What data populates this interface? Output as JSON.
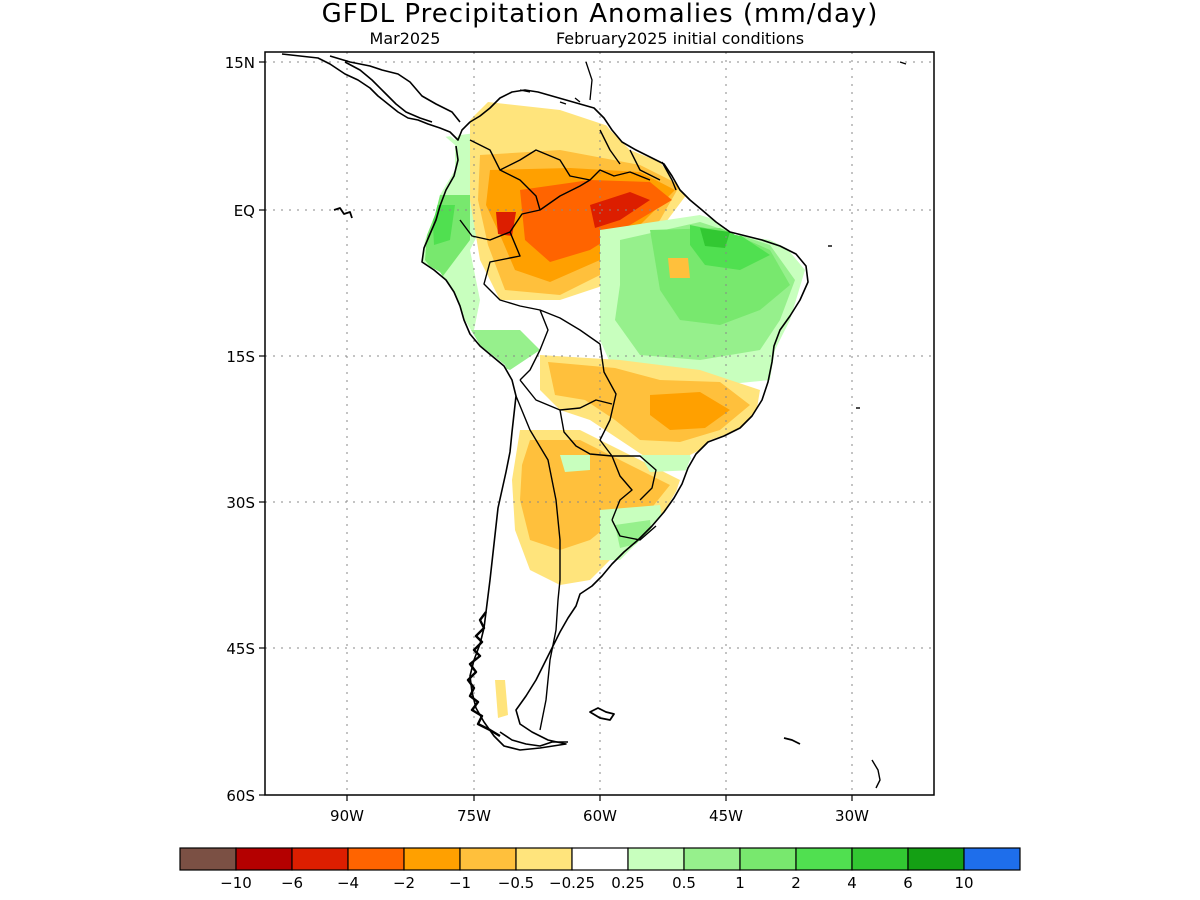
{
  "title": "GFDL Precipitation Anomalies (mm/day)",
  "subtitle_left": "Mar2025",
  "subtitle_right": "February2025 initial conditions",
  "axes": {
    "lat_labels": [
      "15N",
      "EQ",
      "15S",
      "30S",
      "45S",
      "60S"
    ],
    "lon_labels": [
      "90W",
      "75W",
      "60W",
      "45W",
      "30W"
    ],
    "grid": true
  },
  "legend": {
    "colors": [
      "#7b5044",
      "#b40000",
      "#dc1e00",
      "#ff6400",
      "#ffa000",
      "#ffc03c",
      "#ffe47c",
      "#ffffff",
      "#c8ffbe",
      "#96f08c",
      "#78e86e",
      "#50e050",
      "#32c832",
      "#14a014",
      "#1e6eeb"
    ],
    "labels": [
      "−10",
      "−6",
      "−4",
      "−2",
      "−1",
      "−0.5",
      "−0.25",
      "0.25",
      "0.5",
      "1",
      "2",
      "4",
      "6",
      "10"
    ]
  },
  "anomaly_colors": {
    "dry_strong": "#dc1e00",
    "dry_moderate": "#ff6400",
    "dry": "#ffa000",
    "dry_weak": "#ffc03c",
    "dry_slight": "#ffe47c",
    "wet_slight": "#c8ffbe",
    "wet_weak": "#96f08c",
    "wet": "#78e86e",
    "wet_moderate": "#50e050",
    "wet_strong": "#32c832"
  }
}
